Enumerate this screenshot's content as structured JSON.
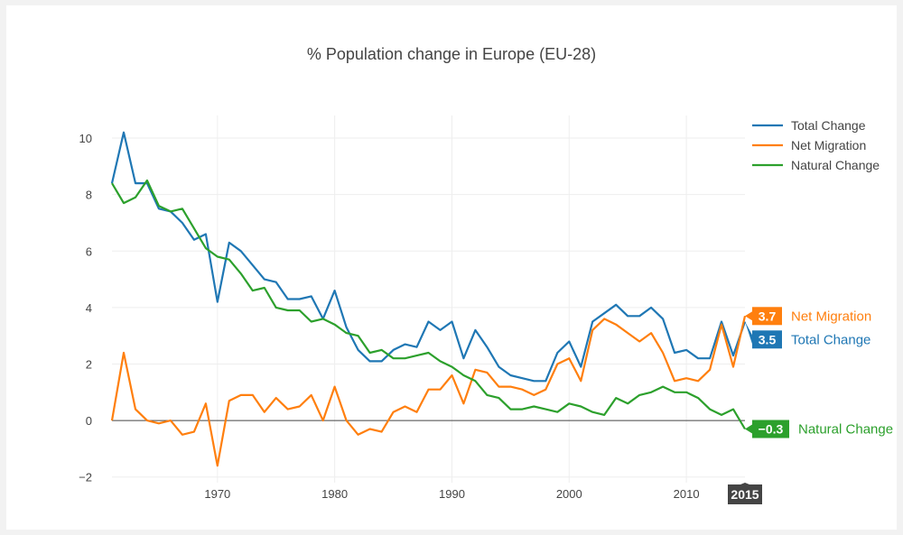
{
  "chart_data": {
    "type": "line",
    "title": "% Population change in Europe (EU-28)",
    "xlabel": "",
    "ylabel": "",
    "xlim": [
      1961,
      2015
    ],
    "ylim": [
      -2.2,
      10.8
    ],
    "x_ticks": [
      1970,
      1980,
      1990,
      2000,
      2010
    ],
    "y_ticks": [
      -2,
      0,
      2,
      4,
      6,
      8,
      10
    ],
    "y_tick_labels": [
      "−2",
      "0",
      "2",
      "4",
      "6",
      "8",
      "10"
    ],
    "grid": true,
    "legend_position": "top-right",
    "hover_x_label": "2015",
    "x": [
      1961,
      1962,
      1963,
      1964,
      1965,
      1966,
      1967,
      1968,
      1969,
      1970,
      1971,
      1972,
      1973,
      1974,
      1975,
      1976,
      1977,
      1978,
      1979,
      1980,
      1981,
      1982,
      1983,
      1984,
      1985,
      1986,
      1987,
      1988,
      1989,
      1990,
      1991,
      1992,
      1993,
      1994,
      1995,
      1996,
      1997,
      1998,
      1999,
      2000,
      2001,
      2002,
      2003,
      2004,
      2005,
      2006,
      2007,
      2008,
      2009,
      2010,
      2011,
      2012,
      2013,
      2014,
      2015
    ],
    "series": [
      {
        "name": "Total Change",
        "color": "#1f77b4",
        "end_label": "3.5",
        "values": [
          8.4,
          10.2,
          8.4,
          8.4,
          7.5,
          7.4,
          7.0,
          6.4,
          6.6,
          4.2,
          6.3,
          6.0,
          5.5,
          5.0,
          4.9,
          4.3,
          4.3,
          4.4,
          3.6,
          4.6,
          3.3,
          2.5,
          2.1,
          2.1,
          2.5,
          2.7,
          2.6,
          3.5,
          3.2,
          3.5,
          2.2,
          3.2,
          2.6,
          1.9,
          1.6,
          1.5,
          1.4,
          1.4,
          2.4,
          2.8,
          1.9,
          3.5,
          3.8,
          4.1,
          3.7,
          3.7,
          4.0,
          3.6,
          2.4,
          2.5,
          2.2,
          2.2,
          3.5,
          2.3,
          3.5
        ]
      },
      {
        "name": "Net Migration",
        "color": "#ff7f0e",
        "end_label": "3.7",
        "values": [
          0.0,
          2.4,
          0.4,
          0.0,
          -0.1,
          0.0,
          -0.5,
          -0.4,
          0.6,
          -1.6,
          0.7,
          0.9,
          0.9,
          0.3,
          0.8,
          0.4,
          0.5,
          0.9,
          0.0,
          1.2,
          0.0,
          -0.5,
          -0.3,
          -0.4,
          0.3,
          0.5,
          0.3,
          1.1,
          1.1,
          1.6,
          0.6,
          1.8,
          1.7,
          1.2,
          1.2,
          1.1,
          0.9,
          1.1,
          2.0,
          2.2,
          1.4,
          3.2,
          3.6,
          3.4,
          3.1,
          2.8,
          3.1,
          2.4,
          1.4,
          1.5,
          1.4,
          1.8,
          3.4,
          1.9,
          3.7
        ]
      },
      {
        "name": "Natural Change",
        "color": "#2ca02c",
        "end_label": "−0.3",
        "values": [
          8.4,
          7.7,
          7.9,
          8.5,
          7.6,
          7.4,
          7.5,
          6.8,
          6.1,
          5.8,
          5.7,
          5.2,
          4.6,
          4.7,
          4.0,
          3.9,
          3.9,
          3.5,
          3.6,
          3.4,
          3.1,
          3.0,
          2.4,
          2.5,
          2.2,
          2.2,
          2.3,
          2.4,
          2.1,
          1.9,
          1.6,
          1.4,
          0.9,
          0.8,
          0.4,
          0.4,
          0.5,
          0.4,
          0.3,
          0.6,
          0.5,
          0.3,
          0.2,
          0.8,
          0.6,
          0.9,
          1.0,
          1.2,
          1.0,
          1.0,
          0.8,
          0.4,
          0.2,
          0.4,
          -0.3
        ]
      }
    ]
  }
}
